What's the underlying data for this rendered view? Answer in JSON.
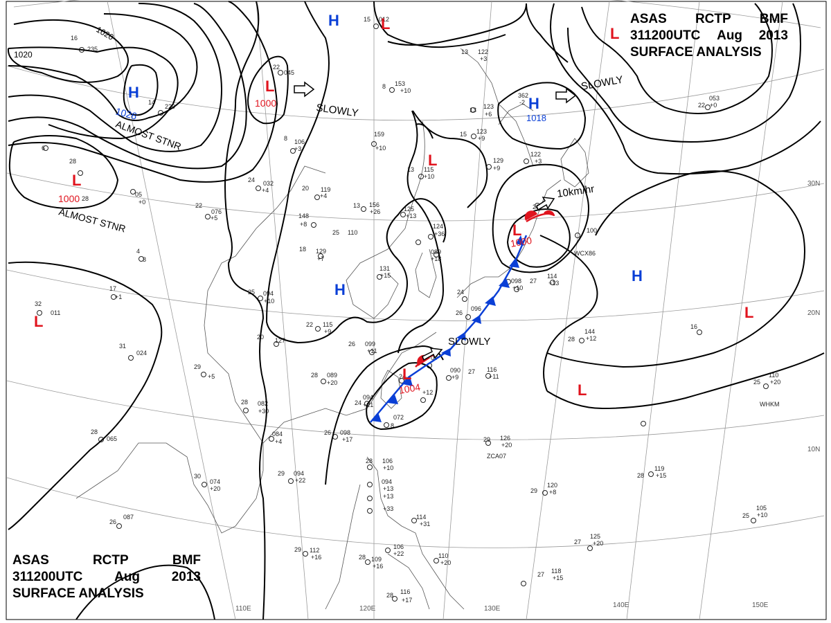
{
  "header": {
    "line1": [
      "ASAS",
      "RCTP",
      "BMF"
    ],
    "line2": [
      "311200UTC",
      "Aug",
      "2013"
    ],
    "line3": "SURFACE ANALYSIS"
  },
  "colors": {
    "high": "#0a3fd6",
    "low": "#e0141e",
    "isobar": "#000000",
    "grid": "#9a9a9a"
  },
  "isobar_labels": [
    "1020",
    "1020"
  ],
  "pressure_systems": [
    {
      "type": "H",
      "value": "1026",
      "annotation": "ALMOST STNR"
    },
    {
      "type": "L",
      "value": "1000",
      "annotation": "ALMOST STNR"
    },
    {
      "type": "L",
      "value": "1000",
      "annotation": ""
    },
    {
      "type": "H",
      "value": "",
      "annotation": ""
    },
    {
      "type": "L",
      "value": "",
      "annotation": ""
    },
    {
      "type": "H",
      "value": "1018",
      "annotation": "SLOWLY"
    },
    {
      "type": "L",
      "value": "",
      "annotation": ""
    },
    {
      "type": "L",
      "value": "1000",
      "annotation": "10km/hr"
    },
    {
      "type": "H",
      "value": "",
      "annotation": ""
    },
    {
      "type": "H",
      "value": "",
      "annotation": ""
    },
    {
      "type": "L",
      "value": "",
      "annotation": ""
    },
    {
      "type": "L",
      "value": "",
      "annotation": ""
    },
    {
      "type": "L",
      "value": "1004",
      "annotation": "SLOWLY"
    },
    {
      "type": "L",
      "value": "",
      "annotation": ""
    },
    {
      "type": "L",
      "value": "",
      "annotation": ""
    }
  ],
  "motion_labels": [
    "SLOWLY",
    "SLOWLY",
    "SLOWLY",
    "10km/hr"
  ],
  "lat_labels": [
    "30N",
    "20N",
    "10N"
  ],
  "lon_labels": [
    "110E",
    "120E",
    "130E",
    "140E",
    "150E"
  ],
  "station_ids": [
    "WCX86",
    "ZCA07",
    "WHKM"
  ]
}
